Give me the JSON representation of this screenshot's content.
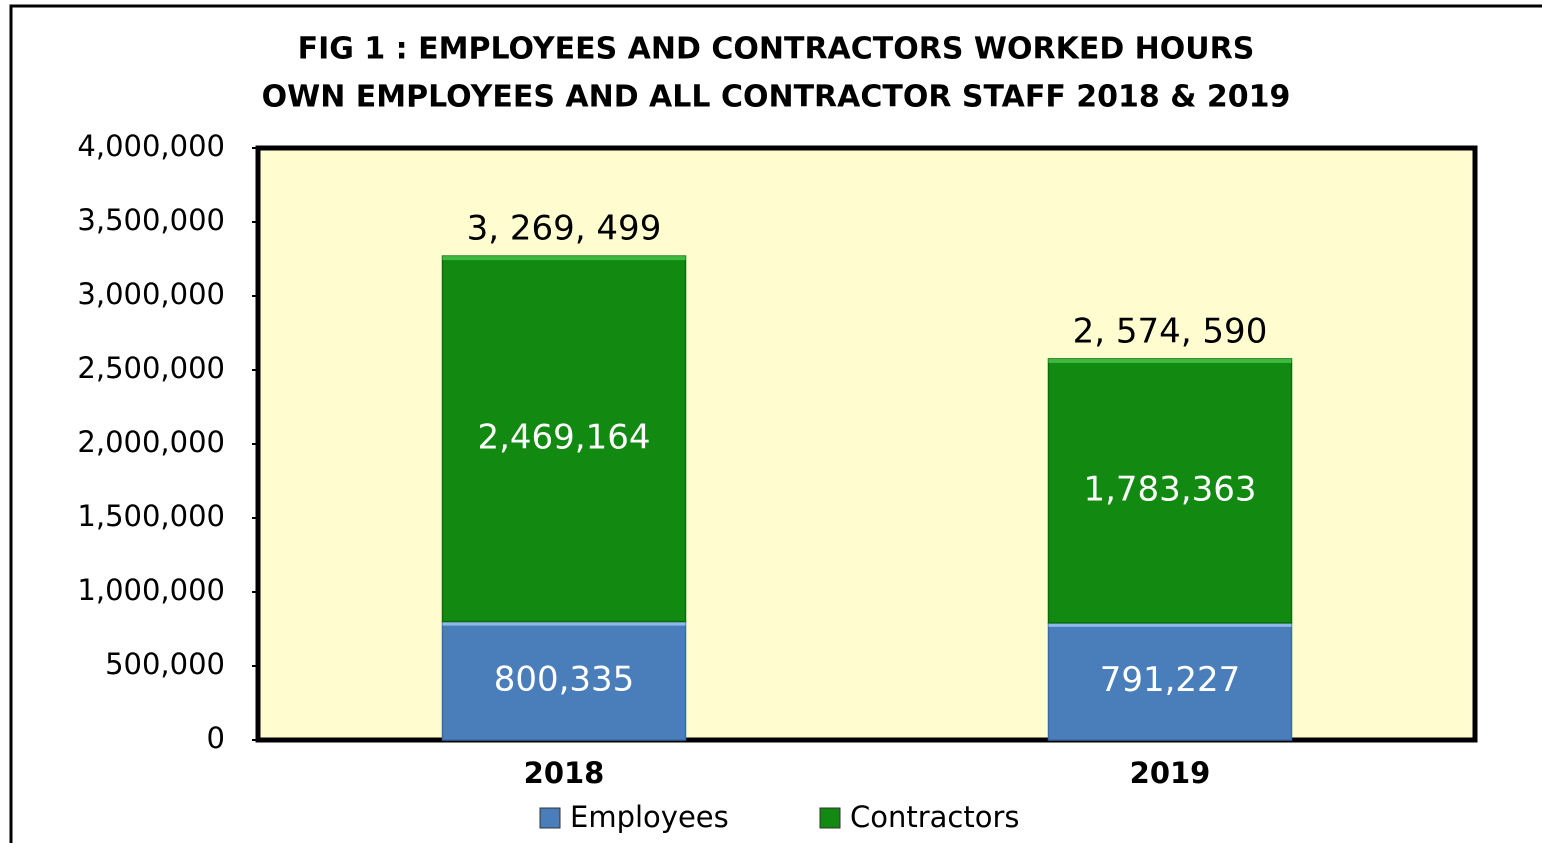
{
  "chart_data": {
    "type": "stacked_bar",
    "title": "FIG 1 : EMPLOYEES AND CONTRACTORS WORKED HOURS",
    "subtitle": "OWN EMPLOYEES AND ALL CONTRACTOR STAFF 2018 & 2019",
    "categories": [
      "2018",
      "2019"
    ],
    "series": [
      {
        "name": "Employees",
        "color": "#4a7ebb",
        "values": [
          800335,
          791227
        ],
        "value_labels": [
          "800,335",
          "791,227"
        ]
      },
      {
        "name": "Contractors",
        "color": "#128a12",
        "values": [
          2469164,
          1783363
        ],
        "value_labels": [
          "2,469,164",
          "1,783,363"
        ]
      }
    ],
    "annotations": [
      "3, 269, 499",
      "2, 574, 590"
    ],
    "ylim": [
      0,
      4000000
    ],
    "yticks": [
      0,
      {
        "value": 500000,
        "label": "500,000"
      },
      {
        "value": 1000000,
        "label": "1,000,000"
      },
      {
        "value": 1500000,
        "label": "1,500,000"
      },
      {
        "value": 2000000,
        "label": "2,000,000"
      },
      {
        "value": 2500000,
        "label": "2,500,000"
      },
      {
        "value": 3000000,
        "label": "3,000,000"
      },
      {
        "value": 3500000,
        "label": "3,500,000"
      },
      {
        "value": 4000000,
        "label": "4,000,000"
      }
    ],
    "plot_background": "#fffdd0",
    "legend": "bottom"
  }
}
